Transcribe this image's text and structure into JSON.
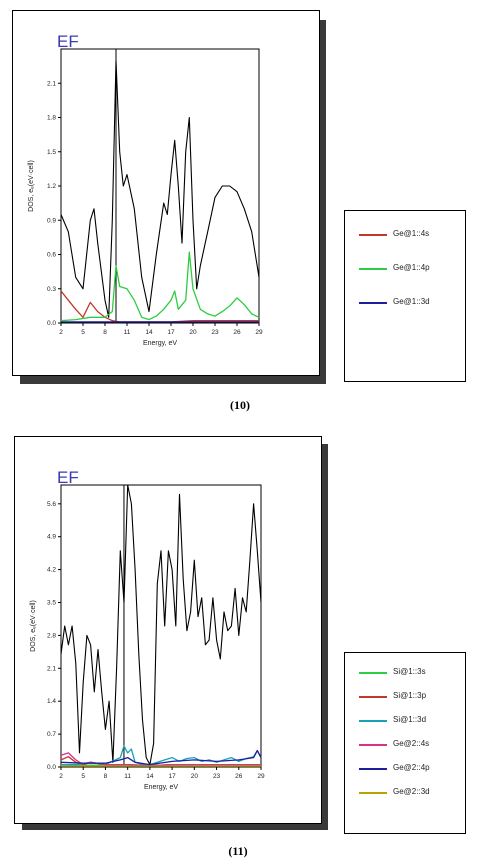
{
  "charts": [
    {
      "caption": "(10)",
      "marker": "EF",
      "xlabel": "Energy, eV",
      "ylabel": "DOS, eₑ(eV·cell)",
      "xticks": [
        "2",
        "5",
        "8",
        "11",
        "14",
        "17",
        "20",
        "23",
        "26",
        "29"
      ],
      "yticks": [
        "0.0",
        "0.3",
        "0.6",
        "0.9",
        "1.2",
        "1.5",
        "1.8",
        "2.1"
      ],
      "legend": [
        "Ge@1::4s",
        "Ge@1::4p",
        "Ge@1::3d"
      ]
    },
    {
      "caption": "(11)",
      "marker": "EF",
      "xlabel": "Energy, eV",
      "ylabel": "DOS, eₑ(eV·cell)",
      "xticks": [
        "2",
        "5",
        "8",
        "11",
        "14",
        "17",
        "20",
        "23",
        "26",
        "29"
      ],
      "yticks": [
        "0.0",
        "0.7",
        "1.4",
        "2.1",
        "2.8",
        "3.5",
        "4.2",
        "4.9",
        "5.6"
      ],
      "legend": [
        "Si@1::3s",
        "Si@1::3p",
        "Si@1::3d",
        "Ge@2::4s",
        "Ge@2::4p",
        "Ge@2::3d"
      ]
    }
  ],
  "chart_data": [
    {
      "type": "line",
      "xlabel": "Energy, eV",
      "ylabel": "DOS, eₑ(eV·cell)",
      "xlim": [
        2,
        29
      ],
      "ylim": [
        0,
        2.4
      ],
      "fermi_level_x": 9.5,
      "grid": false,
      "legend_position": "right, outside",
      "series": [
        {
          "color": "#000000",
          "x": [
            2,
            3,
            4,
            5,
            6,
            6.5,
            7,
            8,
            8.5,
            9,
            9.5,
            10,
            10.5,
            11,
            12,
            13,
            14,
            15,
            16,
            16.5,
            17,
            17.5,
            18,
            18.5,
            19,
            19.5,
            20,
            20.5,
            21,
            22,
            23,
            24,
            25,
            26,
            27,
            28,
            29
          ],
          "y": [
            0.95,
            0.8,
            0.4,
            0.3,
            0.9,
            1.0,
            0.7,
            0.2,
            0.05,
            0.9,
            2.3,
            1.5,
            1.2,
            1.3,
            1.0,
            0.4,
            0.1,
            0.6,
            1.05,
            0.95,
            1.3,
            1.6,
            1.2,
            0.7,
            1.5,
            1.8,
            0.9,
            0.3,
            0.5,
            0.8,
            1.1,
            1.2,
            1.2,
            1.15,
            1.0,
            0.8,
            0.4
          ]
        },
        {
          "name": "Ge@1::4s",
          "color": "#c0392b",
          "x": [
            2,
            3,
            4,
            5,
            6,
            7,
            8,
            9,
            10,
            11,
            14,
            17,
            20,
            23,
            26,
            29
          ],
          "y": [
            0.28,
            0.2,
            0.12,
            0.05,
            0.18,
            0.1,
            0.05,
            0.02,
            0.01,
            0.01,
            0.01,
            0.01,
            0.02,
            0.02,
            0.02,
            0.02
          ]
        },
        {
          "name": "Ge@1::4p",
          "color": "#2ecc40",
          "x": [
            2,
            4,
            6,
            8,
            9,
            9.5,
            10,
            11,
            12,
            13,
            14,
            15,
            16,
            17,
            17.5,
            18,
            19,
            19.5,
            20,
            21,
            22,
            23,
            24,
            25,
            26,
            27,
            28,
            29
          ],
          "y": [
            0.02,
            0.03,
            0.05,
            0.05,
            0.1,
            0.5,
            0.32,
            0.3,
            0.2,
            0.05,
            0.03,
            0.06,
            0.12,
            0.2,
            0.28,
            0.12,
            0.2,
            0.62,
            0.3,
            0.12,
            0.08,
            0.06,
            0.1,
            0.15,
            0.22,
            0.16,
            0.08,
            0.05
          ]
        },
        {
          "name": "Ge@1::3d",
          "color": "#1f1f9e",
          "x": [
            2,
            5,
            8,
            11,
            14,
            17,
            20,
            23,
            26,
            29
          ],
          "y": [
            0.01,
            0.01,
            0.01,
            0.01,
            0.01,
            0.01,
            0.01,
            0.01,
            0.01,
            0.01
          ]
        }
      ]
    },
    {
      "type": "line",
      "xlabel": "Energy, eV",
      "ylabel": "DOS, eₑ(eV·cell)",
      "xlim": [
        2,
        29
      ],
      "ylim": [
        0,
        6.0
      ],
      "fermi_level_x": 10.5,
      "grid": false,
      "legend_position": "right, outside",
      "series": [
        {
          "color": "#000000",
          "x": [
            2,
            2.5,
            3,
            3.5,
            4,
            4.5,
            5,
            5.5,
            6,
            6.5,
            7,
            7.5,
            8,
            8.5,
            9,
            9.5,
            10,
            10.5,
            11,
            11.5,
            12,
            12.5,
            13,
            13.5,
            14,
            14.5,
            15,
            15.5,
            16,
            16.5,
            17,
            17.5,
            18,
            18.5,
            19,
            19.5,
            20,
            20.5,
            21,
            21.5,
            22,
            22.5,
            23,
            23.5,
            24,
            24.5,
            25,
            25.5,
            26,
            26.5,
            27,
            27.5,
            28,
            28.5,
            29
          ],
          "y": [
            2.4,
            3.0,
            2.6,
            3.0,
            2.2,
            0.3,
            1.8,
            2.8,
            2.6,
            1.6,
            2.5,
            1.6,
            0.8,
            1.4,
            0.1,
            2.1,
            4.6,
            3.5,
            6.0,
            5.6,
            4.2,
            2.4,
            1.0,
            0.2,
            0.05,
            0.5,
            3.9,
            4.6,
            3.0,
            4.6,
            4.2,
            3.0,
            5.8,
            4.0,
            2.9,
            3.3,
            4.4,
            3.2,
            3.6,
            2.6,
            2.7,
            3.6,
            2.7,
            2.3,
            3.3,
            2.9,
            3.0,
            3.8,
            2.8,
            3.6,
            3.3,
            4.4,
            5.6,
            4.6,
            3.5
          ]
        },
        {
          "name": "Si@1::3s",
          "color": "#2ecc40",
          "x": [
            2,
            5,
            8,
            11,
            14,
            17,
            20,
            23,
            26,
            29
          ],
          "y": [
            0.05,
            0.04,
            0.04,
            0.05,
            0.03,
            0.05,
            0.05,
            0.05,
            0.05,
            0.05
          ]
        },
        {
          "name": "Si@1::3p",
          "color": "#c0392b",
          "x": [
            2,
            3,
            4,
            5,
            6,
            8,
            11,
            14,
            17,
            20,
            23,
            26,
            29
          ],
          "y": [
            0.15,
            0.22,
            0.1,
            0.05,
            0.1,
            0.05,
            0.05,
            0.03,
            0.05,
            0.05,
            0.05,
            0.05,
            0.05
          ]
        },
        {
          "name": "Si@1::3d",
          "color": "#17a2b8",
          "x": [
            2,
            4,
            6,
            8,
            10,
            10.5,
            11,
            11.5,
            12,
            13,
            14,
            15,
            16,
            17,
            18,
            19,
            20,
            21,
            22,
            23,
            24,
            25,
            26,
            27,
            28,
            28.5,
            29
          ],
          "y": [
            0.05,
            0.05,
            0.1,
            0.05,
            0.2,
            0.45,
            0.3,
            0.38,
            0.1,
            0.05,
            0.05,
            0.1,
            0.15,
            0.2,
            0.12,
            0.18,
            0.2,
            0.12,
            0.15,
            0.1,
            0.15,
            0.2,
            0.12,
            0.18,
            0.22,
            0.35,
            0.2
          ]
        },
        {
          "name": "Ge@2::4s",
          "color": "#d63384",
          "x": [
            2,
            3,
            4,
            5,
            6,
            8,
            11,
            14,
            17,
            20,
            23,
            26,
            29
          ],
          "y": [
            0.25,
            0.3,
            0.15,
            0.05,
            0.1,
            0.05,
            0.05,
            0.03,
            0.05,
            0.05,
            0.05,
            0.05,
            0.05
          ]
        },
        {
          "name": "Ge@2::4p",
          "color": "#1f1f9e",
          "x": [
            2,
            5,
            8,
            10,
            11,
            12,
            14,
            17,
            20,
            23,
            26,
            28,
            28.5,
            29
          ],
          "y": [
            0.1,
            0.08,
            0.08,
            0.15,
            0.2,
            0.1,
            0.05,
            0.12,
            0.15,
            0.12,
            0.15,
            0.2,
            0.35,
            0.2
          ]
        },
        {
          "name": "Ge@2::3d",
          "color": "#b8a300",
          "x": [
            2,
            5,
            8,
            11,
            14,
            17,
            20,
            23,
            26,
            29
          ],
          "y": [
            0.02,
            0.02,
            0.02,
            0.02,
            0.02,
            0.02,
            0.02,
            0.02,
            0.02,
            0.02
          ]
        }
      ]
    }
  ]
}
